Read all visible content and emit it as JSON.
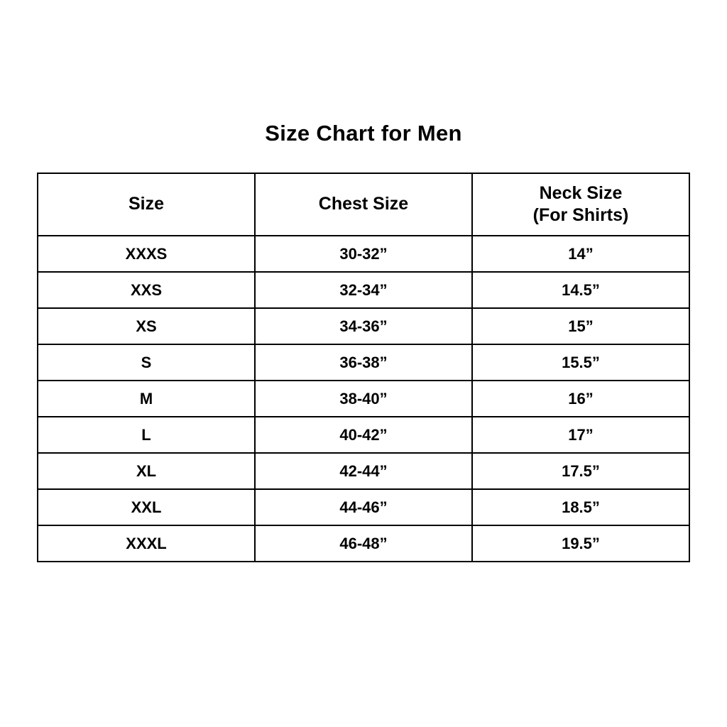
{
  "page": {
    "title": "Size Chart for Men"
  },
  "chart_data": {
    "type": "table",
    "title": "Size Chart for Men",
    "columns": [
      "Size",
      "Chest Size",
      "Neck Size (For Shirts)"
    ],
    "rows": [
      [
        "XXXS",
        "30-32”",
        "14”"
      ],
      [
        "XXS",
        "32-34”",
        "14.5”"
      ],
      [
        "XS",
        "34-36”",
        "15”"
      ],
      [
        "S",
        "36-38”",
        "15.5”"
      ],
      [
        "M",
        "38-40”",
        "16”"
      ],
      [
        "L",
        "40-42”",
        "17”"
      ],
      [
        "XL",
        "42-44”",
        "17.5”"
      ],
      [
        "XXL",
        "44-46”",
        "18.5”"
      ],
      [
        "XXXL",
        "46-48”",
        "19.5”"
      ]
    ],
    "layout": {
      "grid": "on",
      "border_color": "#000000",
      "background": "#ffffff",
      "text_color": "#000000"
    }
  },
  "table": {
    "headers": [
      {
        "line1": "Size",
        "line2": ""
      },
      {
        "line1": "Chest Size",
        "line2": ""
      },
      {
        "line1": "Neck Size",
        "line2": "(For Shirts)"
      }
    ]
  }
}
